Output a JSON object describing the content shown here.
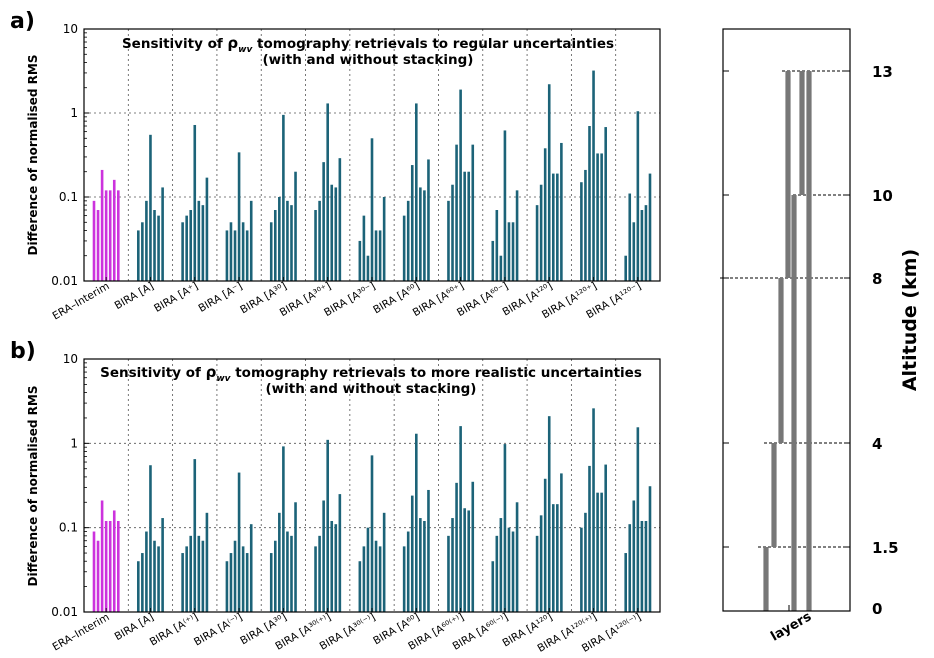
{
  "colors": {
    "era": "#cc33dd",
    "bira": "#1c6378",
    "grid": "#555555",
    "layers": "#777777",
    "axis": "#000000"
  },
  "chart_data": [
    {
      "panel_label": "a)",
      "type": "bar",
      "title": "Sensitivity of ρ_wv tomography retrievals to regular uncertainties",
      "title_parts": {
        "before": "Sensitivity of ",
        "symbol": "ρ",
        "subscript": "wv",
        "after": " tomography retrievals to regular uncertainties"
      },
      "subtitle": "(with and without stacking)",
      "ylabel": "Difference of normalised RMS",
      "yscale": "log",
      "ylim": [
        0.01,
        10
      ],
      "yticks": [
        "0.01",
        "0.1",
        "1",
        "10"
      ],
      "grid": true,
      "categories": [
        "ERA–Interim",
        "BIRA [A]",
        "BIRA [A⁺]",
        "BIRA [A⁻]",
        "BIRA [A³⁰]",
        "BIRA [A³⁰⁺]",
        "BIRA [A³⁰⁻]",
        "BIRA [A⁶⁰]",
        "BIRA [A⁶⁰⁺]",
        "BIRA [A⁶⁰⁻]",
        "BIRA [A¹²⁰]",
        "BIRA [A¹²⁰⁺]",
        "BIRA [A¹²⁰⁻]"
      ],
      "values": [
        [
          0.09,
          0.07,
          0.21,
          0.12,
          0.12,
          0.16,
          0.12
        ],
        [
          0.04,
          0.05,
          0.09,
          0.55,
          0.07,
          0.06,
          0.13
        ],
        [
          0.05,
          0.06,
          0.07,
          0.72,
          0.09,
          0.08,
          0.17
        ],
        [
          0.04,
          0.05,
          0.04,
          0.34,
          0.05,
          0.04,
          0.09
        ],
        [
          0.05,
          0.07,
          0.1,
          0.95,
          0.09,
          0.08,
          0.2
        ],
        [
          0.07,
          0.09,
          0.26,
          1.3,
          0.14,
          0.13,
          0.29
        ],
        [
          0.03,
          0.06,
          0.02,
          0.5,
          0.04,
          0.04,
          0.1
        ],
        [
          0.06,
          0.09,
          0.24,
          1.3,
          0.13,
          0.12,
          0.28
        ],
        [
          0.09,
          0.14,
          0.42,
          1.9,
          0.2,
          0.2,
          0.42
        ],
        [
          0.03,
          0.07,
          0.02,
          0.62,
          0.05,
          0.05,
          0.12
        ],
        [
          0.08,
          0.14,
          0.38,
          2.2,
          0.19,
          0.19,
          0.44
        ],
        [
          0.15,
          0.21,
          0.7,
          3.2,
          0.33,
          0.33,
          0.68
        ],
        [
          0.02,
          0.11,
          0.05,
          1.05,
          0.07,
          0.08,
          0.19
        ]
      ]
    },
    {
      "panel_label": "b)",
      "type": "bar",
      "title": "Sensitivity of ρ_wv tomography retrievals to more realistic uncertainties",
      "title_parts": {
        "before": "Sensitivity of ",
        "symbol": "ρ",
        "subscript": "wv",
        "after": " tomography retrievals to more realistic uncertainties"
      },
      "subtitle": "(with and without stacking)",
      "ylabel": "Difference of normalised RMS",
      "yscale": "log",
      "ylim": [
        0.01,
        10
      ],
      "yticks": [
        "0.01",
        "0.1",
        "1",
        "10"
      ],
      "grid": true,
      "categories": [
        "ERA–Interim",
        "BIRA [A]",
        "BIRA [A⁽⁺⁾]",
        "BIRA [A⁽⁻⁾]",
        "BIRA [A³⁰]",
        "BIRA [A³⁰⁽⁺⁾]",
        "BIRA [A³⁰⁽⁻⁾]",
        "BIRA [A⁶⁰]",
        "BIRA [A⁶⁰⁽⁺⁾]",
        "BIRA [A⁶⁰⁽⁻⁾]",
        "BIRA [A¹²⁰]",
        "BIRA [A¹²⁰⁽⁺⁾]",
        "BIRA [A¹²⁰⁽⁻⁾]"
      ],
      "values": [
        [
          0.09,
          0.07,
          0.21,
          0.12,
          0.12,
          0.16,
          0.12
        ],
        [
          0.04,
          0.05,
          0.09,
          0.55,
          0.07,
          0.06,
          0.13
        ],
        [
          0.05,
          0.06,
          0.08,
          0.65,
          0.08,
          0.07,
          0.15
        ],
        [
          0.04,
          0.05,
          0.07,
          0.45,
          0.06,
          0.05,
          0.11
        ],
        [
          0.05,
          0.07,
          0.15,
          0.92,
          0.09,
          0.08,
          0.2
        ],
        [
          0.06,
          0.08,
          0.21,
          1.1,
          0.12,
          0.11,
          0.25
        ],
        [
          0.04,
          0.06,
          0.1,
          0.72,
          0.07,
          0.06,
          0.15
        ],
        [
          0.06,
          0.09,
          0.24,
          1.3,
          0.13,
          0.12,
          0.28
        ],
        [
          0.08,
          0.13,
          0.34,
          1.6,
          0.17,
          0.16,
          0.35
        ],
        [
          0.04,
          0.08,
          0.13,
          0.98,
          0.1,
          0.09,
          0.2
        ],
        [
          0.08,
          0.14,
          0.38,
          2.1,
          0.19,
          0.19,
          0.44
        ],
        [
          0.1,
          0.15,
          0.54,
          2.6,
          0.26,
          0.26,
          0.56
        ],
        [
          0.05,
          0.11,
          0.21,
          1.55,
          0.12,
          0.12,
          0.31
        ]
      ]
    },
    {
      "type": "table",
      "xlabel": "layers",
      "ylabel": "Altitude (km)",
      "ticks": [
        "0",
        "1.5",
        "4",
        "8",
        "10",
        "13"
      ],
      "tick_values": [
        0,
        1.5,
        4,
        8,
        10,
        13
      ],
      "layers": [
        {
          "bottom": 0,
          "top": 1.5
        },
        {
          "bottom": 1.5,
          "top": 4
        },
        {
          "bottom": 4,
          "top": 8
        },
        {
          "bottom": 8,
          "top": 13
        },
        {
          "bottom": 0,
          "top": 10
        },
        {
          "bottom": 10,
          "top": 13
        },
        {
          "bottom": 0,
          "top": 13
        }
      ]
    }
  ]
}
